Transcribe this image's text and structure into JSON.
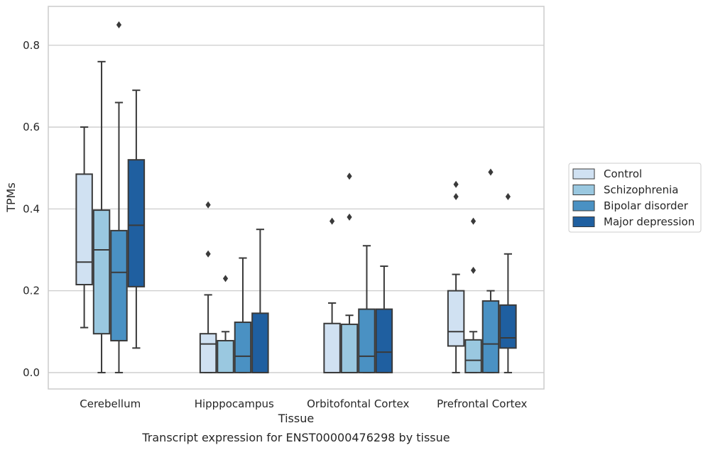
{
  "chart_data": {
    "type": "box",
    "caption": "Transcript expression for ENST00000476298 by tissue",
    "xlabel": "Tissue",
    "ylabel": "TPMs",
    "ylim": [
      -0.04,
      0.895
    ],
    "yticks": [
      0.0,
      0.2,
      0.4,
      0.6,
      0.8
    ],
    "ytick_labels": [
      "0.0",
      "0.2",
      "0.4",
      "0.6",
      "0.8"
    ],
    "grid": "horizontal",
    "legend_position": "right",
    "categories": [
      "Cerebellum",
      "Hipppocampus",
      "Orbitofontal Cortex",
      "Prefrontal Cortex"
    ],
    "series": [
      {
        "name": "Control",
        "color": "#d0e1f2",
        "boxes": [
          {
            "whisker_low": 0.11,
            "q1": 0.215,
            "median": 0.27,
            "q3": 0.485,
            "whisker_high": 0.6,
            "outliers": []
          },
          {
            "whisker_low": 0.0,
            "q1": 0.0,
            "median": 0.07,
            "q3": 0.095,
            "whisker_high": 0.19,
            "outliers": [
              0.29,
              0.41
            ]
          },
          {
            "whisker_low": 0.0,
            "q1": 0.0,
            "median": 0.0,
            "q3": 0.12,
            "whisker_high": 0.17,
            "outliers": [
              0.37
            ]
          },
          {
            "whisker_low": 0.0,
            "q1": 0.065,
            "median": 0.1,
            "q3": 0.2,
            "whisker_high": 0.24,
            "outliers": [
              0.43,
              0.46
            ]
          }
        ]
      },
      {
        "name": "Schizophrenia",
        "color": "#9ac8e0",
        "boxes": [
          {
            "whisker_low": 0.0,
            "q1": 0.095,
            "median": 0.3,
            "q3": 0.397,
            "whisker_high": 0.76,
            "outliers": []
          },
          {
            "whisker_low": 0.0,
            "q1": 0.0,
            "median": 0.0,
            "q3": 0.078,
            "whisker_high": 0.1,
            "outliers": [
              0.23
            ]
          },
          {
            "whisker_low": 0.0,
            "q1": 0.0,
            "median": 0.0,
            "q3": 0.118,
            "whisker_high": 0.14,
            "outliers": [
              0.38,
              0.48
            ]
          },
          {
            "whisker_low": 0.0,
            "q1": 0.0,
            "median": 0.03,
            "q3": 0.08,
            "whisker_high": 0.1,
            "outliers": [
              0.25,
              0.37
            ]
          }
        ]
      },
      {
        "name": "Bipolar disorder",
        "color": "#4a91c3",
        "boxes": [
          {
            "whisker_low": 0.0,
            "q1": 0.078,
            "median": 0.245,
            "q3": 0.347,
            "whisker_high": 0.66,
            "outliers": [
              0.85
            ]
          },
          {
            "whisker_low": 0.0,
            "q1": 0.0,
            "median": 0.04,
            "q3": 0.123,
            "whisker_high": 0.28,
            "outliers": []
          },
          {
            "whisker_low": 0.0,
            "q1": 0.0,
            "median": 0.04,
            "q3": 0.155,
            "whisker_high": 0.31,
            "outliers": []
          },
          {
            "whisker_low": 0.0,
            "q1": 0.0,
            "median": 0.07,
            "q3": 0.175,
            "whisker_high": 0.2,
            "outliers": [
              0.49
            ]
          }
        ]
      },
      {
        "name": "Major depression",
        "color": "#1f5fa0",
        "boxes": [
          {
            "whisker_low": 0.06,
            "q1": 0.21,
            "median": 0.36,
            "q3": 0.52,
            "whisker_high": 0.69,
            "outliers": []
          },
          {
            "whisker_low": 0.0,
            "q1": 0.0,
            "median": 0.0,
            "q3": 0.145,
            "whisker_high": 0.35,
            "outliers": []
          },
          {
            "whisker_low": 0.0,
            "q1": 0.0,
            "median": 0.05,
            "q3": 0.155,
            "whisker_high": 0.26,
            "outliers": []
          },
          {
            "whisker_low": 0.0,
            "q1": 0.06,
            "median": 0.085,
            "q3": 0.165,
            "whisker_high": 0.29,
            "outliers": [
              0.43
            ]
          }
        ]
      }
    ]
  }
}
